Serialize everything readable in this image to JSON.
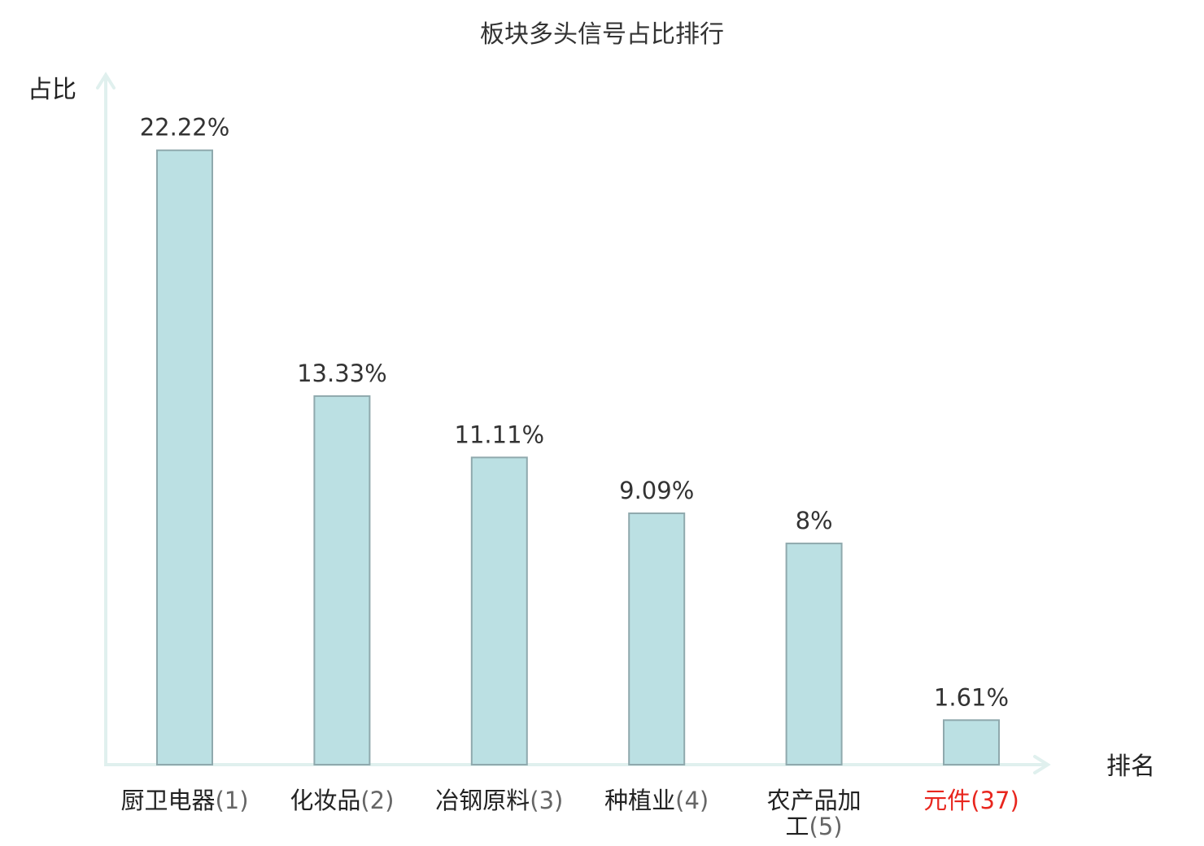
{
  "chart_data": {
    "type": "bar",
    "title": "板块多头信号占比排行",
    "ylabel": "占比",
    "xlabel": "排名",
    "ylim": [
      0,
      25
    ],
    "grid": false,
    "bar_color": "#bbe0e3",
    "bar_border_color": "#8fa9ad",
    "axis_color": "#e0f0ee",
    "highlight_color": "#e8261e",
    "categories": [
      {
        "name": "厨卫电器",
        "rank": "(1)",
        "value": 22.22,
        "value_label": "22.22%",
        "highlight": false
      },
      {
        "name": "化妆品",
        "rank": "(2)",
        "value": 13.33,
        "value_label": "13.33%",
        "highlight": false
      },
      {
        "name": "冶钢原料",
        "rank": "(3)",
        "value": 11.11,
        "value_label": "11.11%",
        "highlight": false
      },
      {
        "name": "种植业",
        "rank": "(4)",
        "value": 9.09,
        "value_label": "9.09%",
        "highlight": false
      },
      {
        "name": "农产品加工",
        "rank": "(5)",
        "value": 8,
        "value_label": "8%",
        "highlight": false
      },
      {
        "name": "元件",
        "rank": "(37)",
        "value": 1.61,
        "value_label": "1.61%",
        "highlight": true
      }
    ]
  }
}
